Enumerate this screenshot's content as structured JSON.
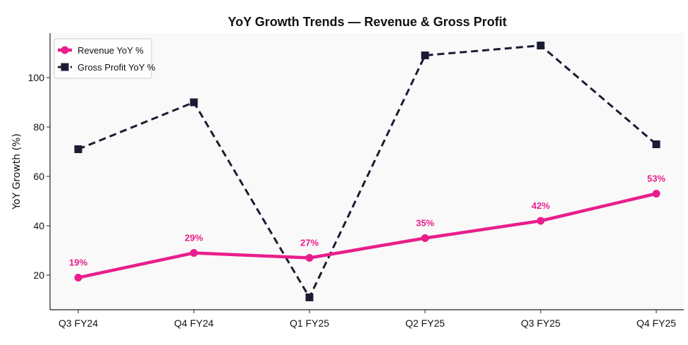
{
  "chart_data": {
    "type": "line",
    "title": "YoY Growth Trends — Revenue & Gross Profit",
    "xlabel": "",
    "ylabel": "YoY Growth (%)",
    "categories": [
      "Q3 FY24",
      "Q4 FY24",
      "Q1 FY25",
      "Q2 FY25",
      "Q3 FY25",
      "Q4 FY25"
    ],
    "ylim": [
      6,
      118
    ],
    "yticks": [
      20,
      40,
      60,
      80,
      100
    ],
    "grid": false,
    "legend_position": "top-left",
    "series": [
      {
        "name": "Revenue YoY %",
        "values": [
          19,
          29,
          27,
          35,
          42,
          53
        ],
        "color": "#e91e8c",
        "style": "solid",
        "marker": "circle",
        "data_labels": [
          "19%",
          "29%",
          "27%",
          "35%",
          "42%",
          "53%"
        ]
      },
      {
        "name": "Gross Profit YoY %",
        "values": [
          71,
          90,
          11,
          109,
          113,
          73
        ],
        "color": "#1b1b33",
        "style": "dashed",
        "marker": "square"
      }
    ],
    "plot_background": "#f9f9f9"
  }
}
